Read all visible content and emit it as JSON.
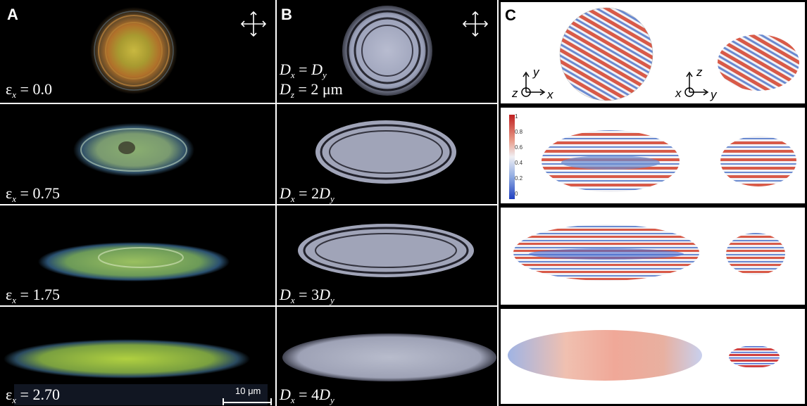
{
  "panel_letters": {
    "a": "A",
    "b": "B",
    "c": "C"
  },
  "column_a_labels": [
    {
      "sym": "ε",
      "sub": "x",
      "eq": "= 0.0"
    },
    {
      "sym": "ε",
      "sub": "x",
      "eq": "= 0.75"
    },
    {
      "sym": "ε",
      "sub": "x",
      "eq": "= 1.75"
    },
    {
      "sym": "ε",
      "sub": "x",
      "eq": "= 2.70"
    }
  ],
  "column_b_labels": {
    "row1_line1": {
      "a": "D",
      "asub": "x",
      "eq": " = ",
      "b": "D",
      "bsub": "y"
    },
    "row1_line2": {
      "a": "D",
      "asub": "z",
      "eq": " = 2 μm"
    },
    "row2": {
      "a": "D",
      "asub": "x",
      "eq": " = 2",
      "b": "D",
      "bsub": "y"
    },
    "row3": {
      "a": "D",
      "asub": "x",
      "eq": " = 3",
      "b": "D",
      "bsub": "y"
    },
    "row4": {
      "a": "D",
      "asub": "x",
      "eq": " = 4",
      "b": "D",
      "bsub": "y"
    }
  },
  "scale_bar": {
    "label": "10 μm"
  },
  "axes": {
    "left": {
      "vertical": "y",
      "horizontal": "x",
      "out": "z"
    },
    "right": {
      "vertical": "z",
      "horizontal": "y",
      "out": "x"
    }
  },
  "colorbar": {
    "ticks": [
      "1",
      "0.8",
      "0.6",
      "0.4",
      "0.2",
      "0"
    ]
  }
}
